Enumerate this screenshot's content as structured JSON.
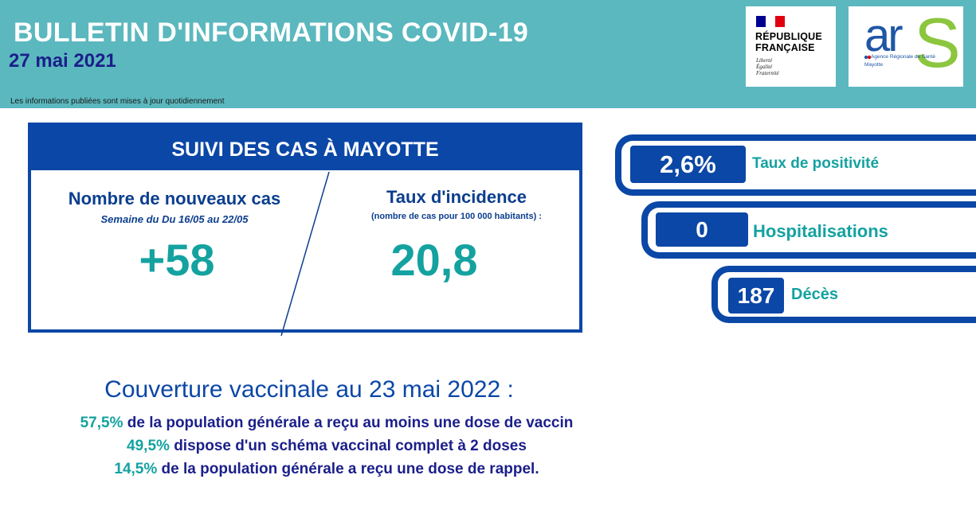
{
  "header": {
    "title": "BULLETIN D'INFORMATIONS COVID-19",
    "date": "27 mai 2021",
    "note": "Les informations publiées sont mises à jour quotidiennement"
  },
  "logos": {
    "republique": {
      "line1": "RÉPUBLIQUE",
      "line2": "FRANÇAISE",
      "motto": [
        "Liberté",
        "Égalité",
        "Fraternité"
      ],
      "flag_colors": [
        "#000091",
        "#ffffff",
        "#e1000f"
      ]
    },
    "ars": {
      "mark": "ar",
      "mark_s": "S",
      "subtitle": "Agence Régionale de Santé",
      "region": "Mayotte"
    }
  },
  "cases": {
    "heading": "SUIVI DES CAS À MAYOTTE",
    "new_cases": {
      "title": "Nombre de nouveaux cas",
      "subtitle": "Semaine du Du 16/05 au 22/05",
      "value": "+58"
    },
    "incidence": {
      "title": "Taux d'incidence",
      "subtitle": "(nombre de cas pour 100 000 habitants) :",
      "value": "20,8"
    }
  },
  "stats": [
    {
      "value": "2,6%",
      "label": "Taux de positivité"
    },
    {
      "value": "0",
      "label": "Hospitalisations"
    },
    {
      "value": "187",
      "label": "Décès"
    }
  ],
  "vaccination": {
    "title": "Couverture vaccinale au 23 mai 2022 :",
    "lines": [
      {
        "pct": "57,5%",
        "text": " de la population générale a reçu au moins une dose de vaccin"
      },
      {
        "pct": "49,5%",
        "text": " dispose d'un schéma vaccinal complet à 2 doses"
      },
      {
        "pct": "14,5%",
        "text": " de la population générale a reçu une dose de rappel."
      }
    ]
  },
  "colors": {
    "header_bg": "#5bb8be",
    "primary_blue": "#0b47a6",
    "navy": "#1b1f8a",
    "teal": "#14a2a0"
  }
}
